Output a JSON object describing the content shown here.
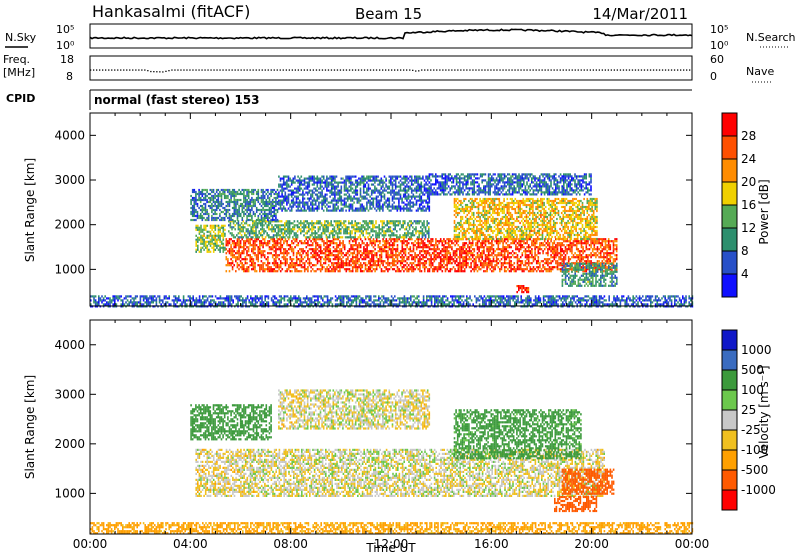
{
  "header": {
    "station": "Hankasalmi (fitACF)",
    "beam": "Beam 15",
    "date": "14/Mar/2011"
  },
  "noise_panel": {
    "left_label": "N.Sky",
    "right_label": "N.Search",
    "left_ticks": [
      "10^5",
      "10^0"
    ],
    "right_ticks": [
      "10^5",
      "10^0"
    ]
  },
  "freq_panel": {
    "left_label_1": "Freq.",
    "left_label_2": "[MHz]",
    "right_label": "Nave",
    "left_ticks": [
      "18",
      "8"
    ],
    "right_ticks": [
      "60",
      "0"
    ],
    "freq_series_mhz": [
      {
        "t": 0.0,
        "v": 12.4
      },
      {
        "t": 2.2,
        "v": 12.4
      },
      {
        "t": 2.4,
        "v": 11.8
      },
      {
        "t": 2.9,
        "v": 11.6
      },
      {
        "t": 3.2,
        "v": 12.4
      },
      {
        "t": 12.8,
        "v": 12.4
      },
      {
        "t": 13.0,
        "v": 11.9
      },
      {
        "t": 13.2,
        "v": 12.4
      },
      {
        "t": 24.0,
        "v": 12.4
      }
    ]
  },
  "cpid": {
    "label": "CPID",
    "text": "normal (fast stereo) 153"
  },
  "colors": {
    "power": [
      "#1010ff",
      "#2850c8",
      "#2d8f6e",
      "#55aa55",
      "#f0d000",
      "#ff8c00",
      "#ff5000",
      "#ff0000"
    ],
    "velocity": [
      "#ff0000",
      "#ff5a00",
      "#ffa000",
      "#f0c020",
      "#c8c8c8",
      "#6cc84c",
      "#3c9a3c",
      "#3a6cc0",
      "#1018c8"
    ],
    "ground_scatter": "#c8c8c8"
  },
  "chart_data": [
    {
      "type": "heatmap",
      "quantity": "Power",
      "xlabel": "",
      "ylabel": "Slant Range [km]",
      "xlim": [
        0,
        24
      ],
      "ylim": [
        180,
        4500
      ],
      "yticks": [
        "1000",
        "2000",
        "3000",
        "4000"
      ],
      "colorbar_label": "Power [dB]",
      "colorbar_ticks": [
        "4",
        "8",
        "12",
        "16",
        "20",
        "24",
        "28"
      ],
      "colorbar_range": [
        0,
        32
      ],
      "regions": [
        {
          "t0": 5.4,
          "t1": 21.0,
          "r0": 950,
          "r1": 1700,
          "level": 26
        },
        {
          "t0": 4.2,
          "t1": 5.4,
          "r0": 1400,
          "r1": 2000,
          "level": 14
        },
        {
          "t0": 5.5,
          "t1": 13.5,
          "r0": 1700,
          "r1": 2100,
          "level": 12
        },
        {
          "t0": 14.5,
          "t1": 20.2,
          "r0": 1700,
          "r1": 2600,
          "level": 18
        },
        {
          "t0": 4.0,
          "t1": 7.5,
          "r0": 2100,
          "r1": 2800,
          "level": 8
        },
        {
          "t0": 7.5,
          "t1": 13.5,
          "r0": 2300,
          "r1": 3100,
          "level": 6
        },
        {
          "t0": 13.5,
          "t1": 20.0,
          "r0": 2700,
          "r1": 3150,
          "level": 6
        },
        {
          "t0": 18.8,
          "t1": 21.0,
          "r0": 650,
          "r1": 1150,
          "level": 10
        },
        {
          "t0": 17.0,
          "t1": 17.5,
          "r0": 500,
          "r1": 650,
          "level": 28
        },
        {
          "t0": 0.0,
          "t1": 24.0,
          "r0": 180,
          "r1": 420,
          "level": 6
        }
      ]
    },
    {
      "type": "heatmap",
      "quantity": "Velocity",
      "xlabel": "Time UT",
      "ylabel": "Slant Range [km]",
      "xlim": [
        0,
        24
      ],
      "ylim": [
        180,
        4500
      ],
      "xticks": [
        "00:00",
        "04:00",
        "08:00",
        "12:00",
        "16:00",
        "20:00",
        "00:00"
      ],
      "yticks": [
        "1000",
        "2000",
        "3000",
        "4000"
      ],
      "colorbar_label": "Velocity [m s^-1]",
      "colorbar_ticks": [
        "1000",
        "500",
        "100",
        "25",
        "-25",
        "-100",
        "-500",
        "-1000"
      ],
      "regions": [
        {
          "t0": 4.2,
          "t1": 20.5,
          "r0": 950,
          "r1": 1900,
          "level": 0
        },
        {
          "t0": 14.5,
          "t1": 19.6,
          "r0": 1700,
          "r1": 2700,
          "level": 120
        },
        {
          "t0": 4.0,
          "t1": 7.2,
          "r0": 2100,
          "r1": 2800,
          "level": 300
        },
        {
          "t0": 7.5,
          "t1": 13.5,
          "r0": 2300,
          "r1": 3100,
          "level": 0
        },
        {
          "t0": 18.8,
          "t1": 20.9,
          "r0": 1000,
          "r1": 1500,
          "level": -300
        },
        {
          "t0": 18.5,
          "t1": 20.2,
          "r0": 650,
          "r1": 950,
          "level": -150
        },
        {
          "t0": 0.0,
          "t1": 24.0,
          "r0": 180,
          "r1": 420,
          "level": -50
        }
      ]
    }
  ]
}
